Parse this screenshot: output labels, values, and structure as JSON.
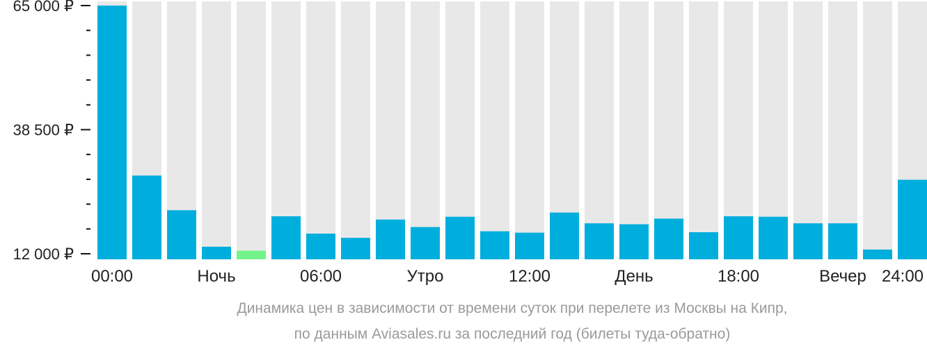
{
  "chart_data": {
    "type": "bar",
    "categories": [
      "00",
      "01",
      "02",
      "03",
      "04",
      "05",
      "06",
      "07",
      "08",
      "09",
      "10",
      "11",
      "12",
      "13",
      "14",
      "15",
      "16",
      "17",
      "18",
      "19",
      "20",
      "21",
      "22",
      "23"
    ],
    "values": [
      65000,
      28700,
      21300,
      13500,
      12650,
      20000,
      16300,
      15400,
      19300,
      17700,
      19900,
      16800,
      16500,
      20800,
      18500,
      18300,
      19500,
      16600,
      20000,
      19900,
      18500,
      18500,
      12900,
      27800
    ],
    "highlight_index": 4,
    "ylim": [
      12000,
      65000
    ],
    "y_tick_labels": [
      "65 000 ₽",
      "38 500 ₽",
      "12 000 ₽"
    ],
    "y_tick_values": [
      65000,
      38500,
      12000
    ],
    "x_labels": [
      "00:00",
      "Ночь",
      "06:00",
      "Утро",
      "12:00",
      "День",
      "18:00",
      "Вечер",
      "24:00"
    ],
    "title": "Динамика цен в зависимости от времени суток при перелете из Москвы на Кипр,",
    "subtitle": "по данным Aviasales.ru за последний год (билеты туда-обратно)",
    "colors": {
      "bar": "#00aedd",
      "highlight": "#73f48a",
      "background_column": "#e8e8e8",
      "axis": "#111111",
      "caption": "#9a9a9a"
    }
  }
}
